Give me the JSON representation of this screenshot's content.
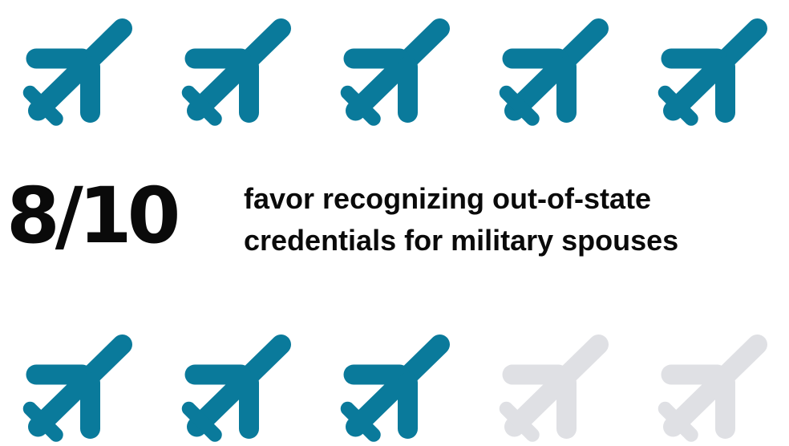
{
  "chart_data": {
    "type": "pictograph",
    "icon": "airplane-icon",
    "total": 10,
    "filled": 8,
    "filled_color": "#0a7a9b",
    "empty_color": "#dfe0e4",
    "stat_text": "8/10",
    "caption_lines": [
      "favor recognizing out-of-state",
      "credentials for military spouses"
    ]
  }
}
